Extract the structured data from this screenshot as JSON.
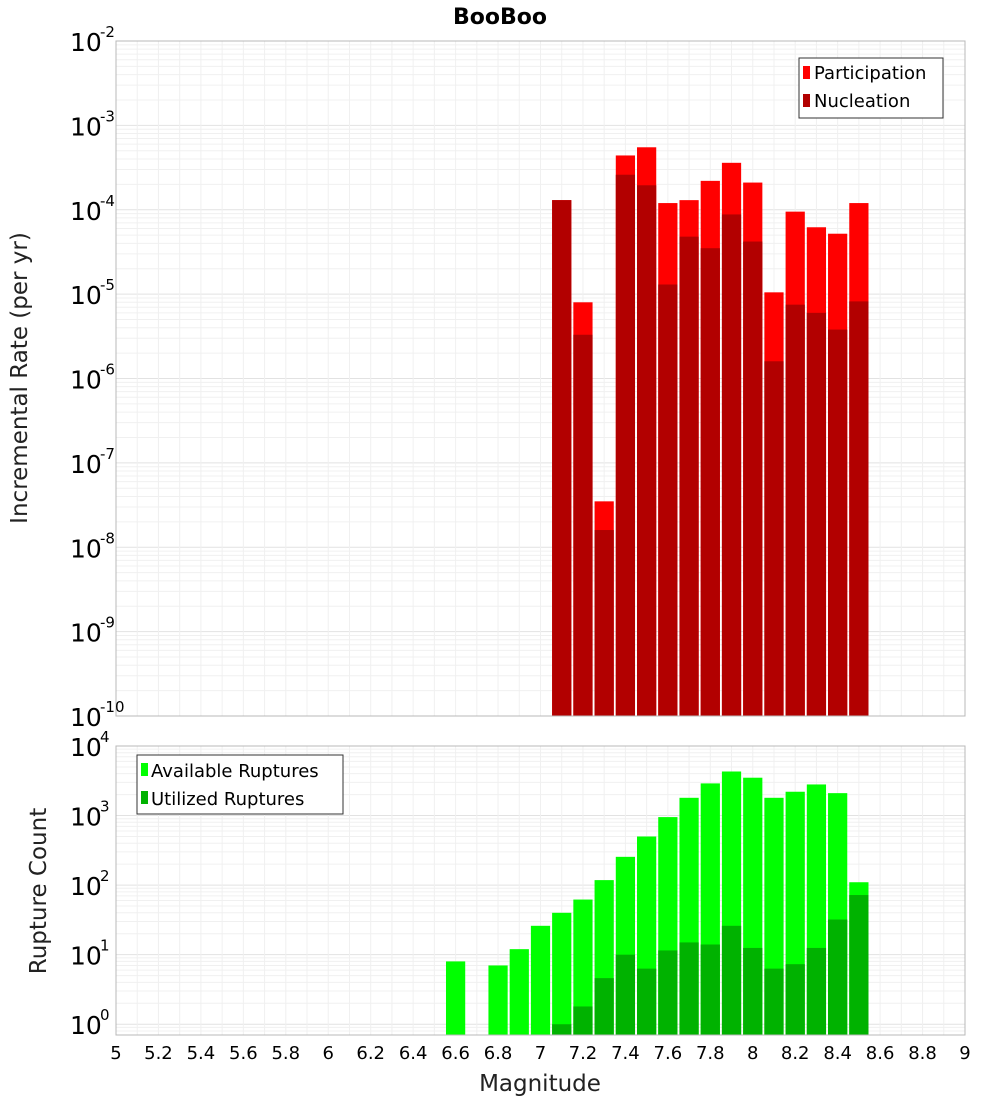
{
  "chart_data": [
    {
      "type": "bar",
      "title": "BooBoo",
      "xlabel": "",
      "ylabel": "Incremental Rate (per yr)",
      "y_scale": "log",
      "ylim": [
        1e-10,
        0.01
      ],
      "xlim": [
        5,
        9
      ],
      "grid": true,
      "legend_position": "top-right",
      "y_tick_labels": [
        {
          "base": "10",
          "exp": "-10"
        },
        {
          "base": "10",
          "exp": "-9"
        },
        {
          "base": "10",
          "exp": "-8"
        },
        {
          "base": "10",
          "exp": "-7"
        },
        {
          "base": "10",
          "exp": "-6"
        },
        {
          "base": "10",
          "exp": "-5"
        },
        {
          "base": "10",
          "exp": "-4"
        },
        {
          "base": "10",
          "exp": "-3"
        },
        {
          "base": "10",
          "exp": "-2"
        }
      ],
      "x": [
        7.1,
        7.2,
        7.3,
        7.4,
        7.5,
        7.6,
        7.7,
        7.8,
        7.9,
        8.0,
        8.1,
        8.2,
        8.3,
        8.4,
        8.5
      ],
      "series": [
        {
          "name": "Participation",
          "color": "#ff0000",
          "values": [
            0.00013,
            8e-06,
            3.5e-08,
            0.00044,
            0.00055,
            0.00012,
            0.00013,
            0.00022,
            0.00036,
            0.00021,
            1.05e-05,
            9.5e-05,
            6.2e-05,
            5.2e-05,
            0.00012
          ]
        },
        {
          "name": "Nucleation",
          "color": "#b20000",
          "values": [
            0.00013,
            3.3e-06,
            1.6e-08,
            0.00026,
            0.000195,
            1.3e-05,
            4.8e-05,
            3.5e-05,
            8.8e-05,
            4.2e-05,
            1.6e-06,
            7.5e-06,
            6e-06,
            3.8e-06,
            8.2e-06
          ]
        }
      ]
    },
    {
      "type": "bar",
      "title": "",
      "xlabel": "Magnitude",
      "ylabel": "Rupture Count",
      "y_scale": "log",
      "ylim": [
        0.7,
        10000
      ],
      "xlim": [
        5,
        9
      ],
      "grid": true,
      "legend_position": "top-left",
      "y_tick_labels": [
        {
          "value": 1,
          "base": "10",
          "exp": "0"
        },
        {
          "value": 10,
          "base": "10",
          "exp": "1"
        },
        {
          "value": 100,
          "base": "10",
          "exp": "2"
        },
        {
          "value": 1000,
          "base": "10",
          "exp": "3"
        },
        {
          "value": 10000,
          "base": "10",
          "exp": "4"
        }
      ],
      "x_tick_labels": [
        "5",
        "5.2",
        "5.4",
        "5.6",
        "5.8",
        "6",
        "6.2",
        "6.4",
        "6.6",
        "6.8",
        "7",
        "7.2",
        "7.4",
        "7.6",
        "7.8",
        "8",
        "8.2",
        "8.4",
        "8.6",
        "8.8",
        "9"
      ],
      "x": [
        6.6,
        6.7,
        6.8,
        6.9,
        7.0,
        7.1,
        7.2,
        7.3,
        7.4,
        7.5,
        7.6,
        7.7,
        7.8,
        7.9,
        8.0,
        8.1,
        8.2,
        8.3,
        8.4,
        8.5
      ],
      "series": [
        {
          "name": "Available Ruptures",
          "color": "#00ff00",
          "values": [
            8,
            null,
            7,
            12,
            26,
            40,
            62,
            118,
            255,
            500,
            950,
            1800,
            2900,
            4300,
            3500,
            1800,
            2200,
            2800,
            2100,
            110
          ]
        },
        {
          "name": "Utilized Ruptures",
          "color": "#00b200",
          "values": [
            null,
            null,
            null,
            null,
            null,
            1,
            1.8,
            4.6,
            10,
            6.3,
            11.5,
            15,
            14,
            26,
            12.5,
            6.3,
            7.3,
            12.5,
            32,
            72
          ]
        }
      ]
    }
  ]
}
